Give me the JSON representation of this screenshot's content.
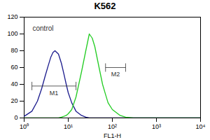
{
  "chart_data": {
    "type": "line",
    "title": "K562",
    "x_label": "FL1-H",
    "log": "x",
    "x": [
      1,
      1.5,
      2,
      2.5,
      3,
      3.5,
      4,
      4.5,
      5,
      6,
      7,
      8,
      9,
      10,
      12,
      15,
      20,
      25,
      30,
      35,
      40,
      50,
      60,
      70,
      80,
      100,
      150,
      200,
      300,
      500,
      1000,
      10000
    ],
    "series": [
      {
        "name": "control",
        "color": "#1a1a8c",
        "values": [
          2,
          8,
          20,
          35,
          50,
          62,
          72,
          78,
          80,
          76,
          65,
          52,
          40,
          30,
          18,
          8,
          3,
          1,
          0,
          0,
          0,
          0,
          0,
          0,
          0,
          0,
          0,
          0,
          0,
          0,
          0,
          0
        ]
      },
      {
        "color": "#22cc22",
        "values": [
          0,
          0,
          0,
          0,
          0,
          0,
          0,
          0,
          0,
          0,
          1,
          2,
          3,
          5,
          10,
          25,
          55,
          80,
          100,
          95,
          85,
          60,
          40,
          28,
          18,
          10,
          3,
          1,
          0,
          0,
          0,
          0
        ]
      }
    ],
    "annotations": [
      {
        "text": "M1",
        "x": [
          1.5,
          15
        ],
        "y": 38
      },
      {
        "text": "M2",
        "x": [
          70,
          200
        ],
        "y": 60
      }
    ],
    "xlim": [
      1,
      10000
    ],
    "xticks": [
      {
        "value": 1,
        "label": "10⁰"
      },
      {
        "value": 10,
        "label": "10¹"
      },
      {
        "value": 100,
        "label": "10²"
      },
      {
        "value": 1000,
        "label": "10³"
      },
      {
        "value": 10000,
        "label": "10⁴"
      }
    ],
    "ylim": [
      0,
      120
    ],
    "yticks": [
      0,
      20,
      40,
      60,
      80,
      100,
      120
    ],
    "grid": false
  }
}
